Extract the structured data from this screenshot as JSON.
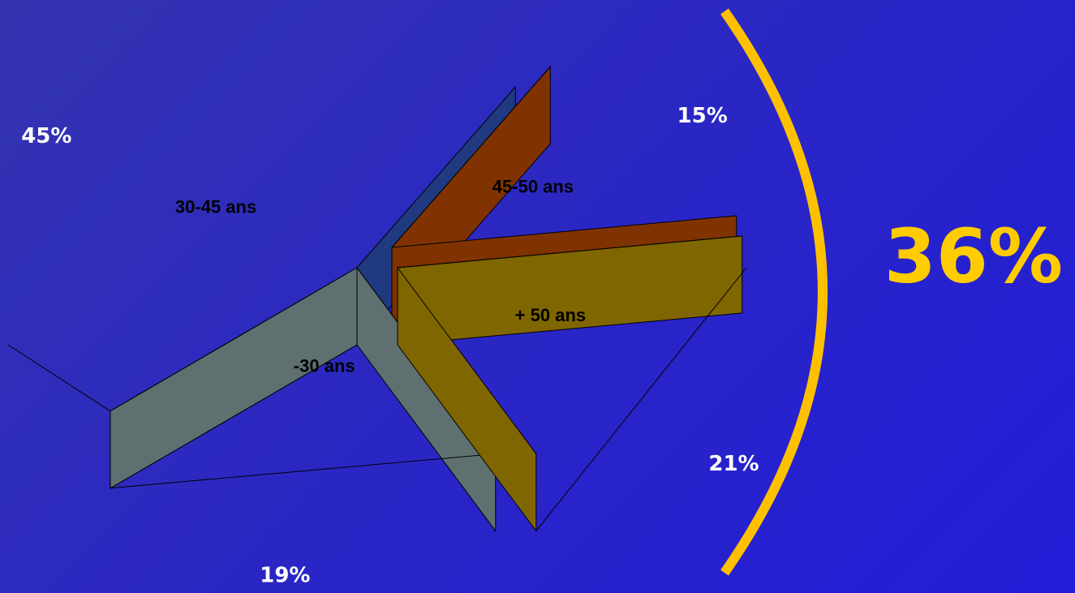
{
  "chart_data": {
    "type": "pie",
    "categories": [
      "30-45 ans",
      "45-50 ans",
      "+ 50 ans",
      "-30 ans"
    ],
    "values": [
      45,
      15,
      21,
      19
    ],
    "value_labels": [
      "45%",
      "15%",
      "21%",
      "19%"
    ],
    "colors": [
      "#3366ff",
      "#ff6600",
      "#ffcc00",
      "#bde0e6"
    ],
    "side_colors": [
      "#1f3a80",
      "#803300",
      "#806600",
      "#5f7070"
    ],
    "annotation": "36%"
  }
}
